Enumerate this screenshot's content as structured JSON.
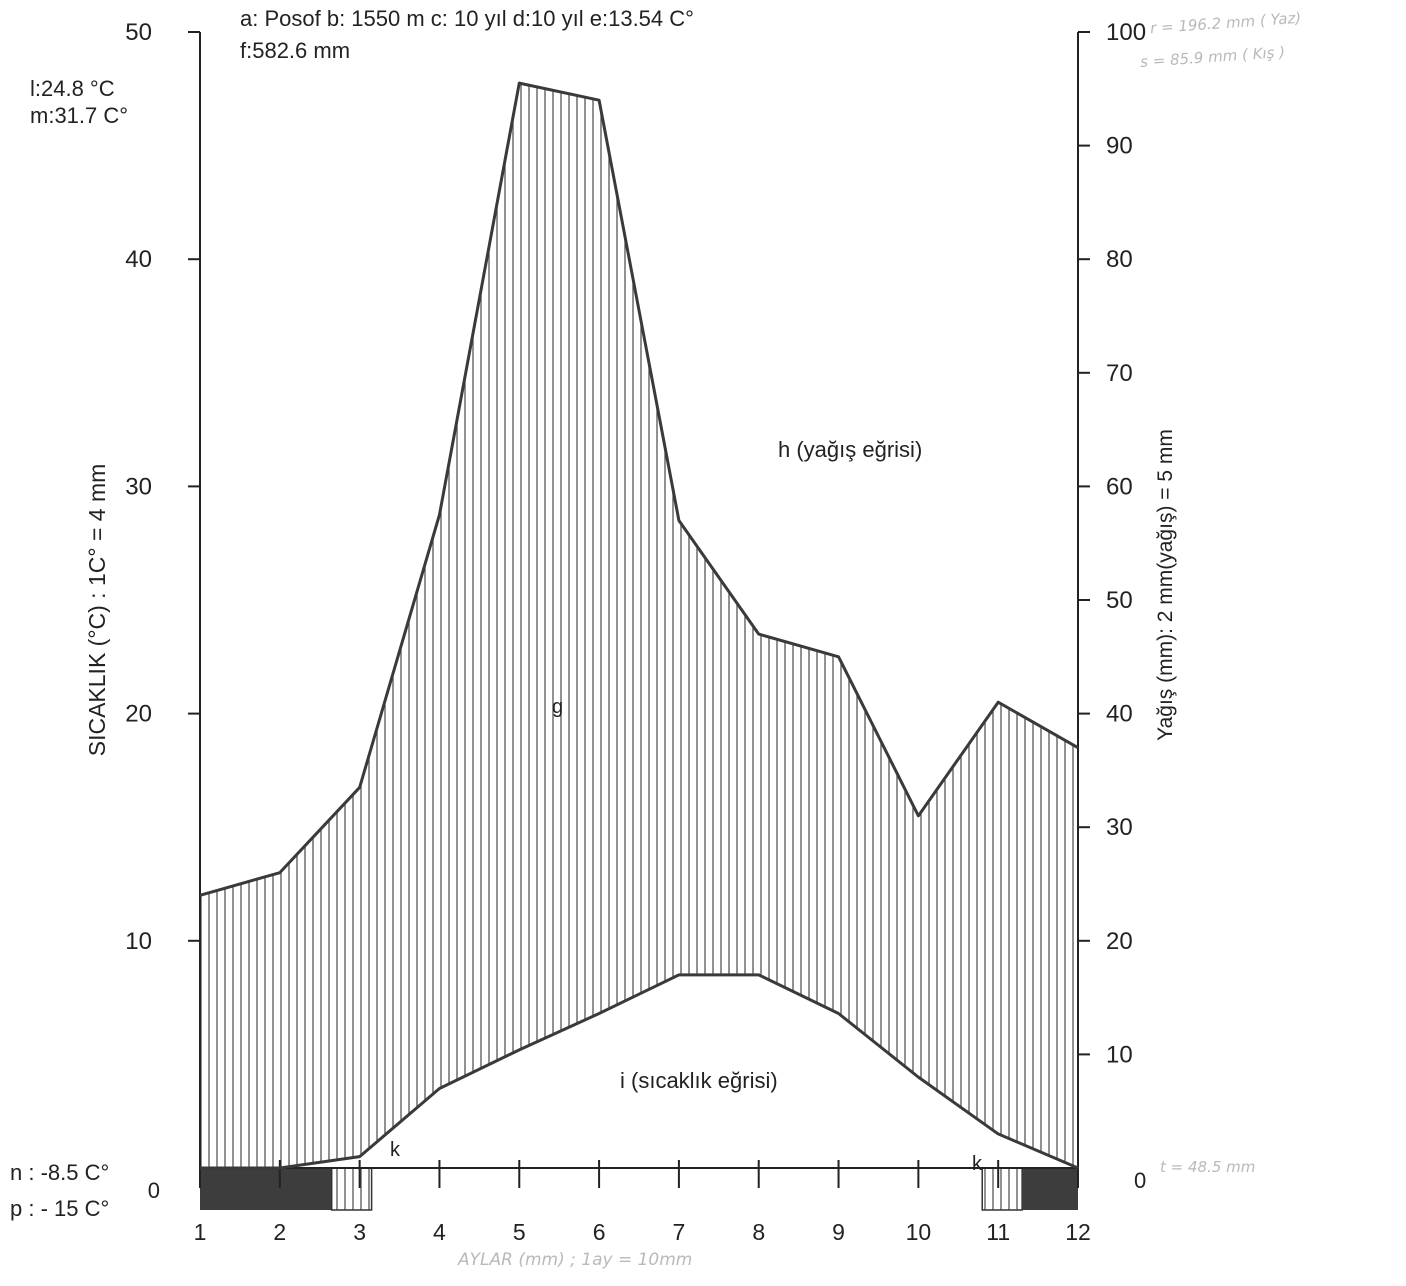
{
  "header": {
    "line1": "a: Posof b: 1550 m c: 10 yıl d:10 yıl e:13.54 C°",
    "line2": "f:582.6 mm"
  },
  "left_notes": {
    "l": "l:24.8 °C",
    "m": "m:31.7 C°"
  },
  "bottom_notes": {
    "n": "n : -8.5 C°",
    "p": "p : - 15 C°"
  },
  "handwritten": {
    "r": "r = 196.2 mm ( Yaz)",
    "s": "s = 85.9 mm ( Kış )",
    "t": "t = 48.5 mm",
    "xlabel": "AYLAR (mm) ; 1ay = 10mm"
  },
  "chart_data": {
    "type": "line",
    "x": [
      1,
      2,
      3,
      4,
      5,
      6,
      7,
      8,
      9,
      10,
      11,
      12
    ],
    "x_ticks": [
      "1",
      "2",
      "3",
      "4",
      "5",
      "6",
      "7",
      "8",
      "9",
      "10",
      "11",
      "12"
    ],
    "series": [
      {
        "name": "h (yağış eğrisi)",
        "axis": "right",
        "values": [
          24,
          26,
          33.5,
          57.5,
          95.5,
          94,
          57,
          47,
          45,
          31,
          41,
          37
        ]
      },
      {
        "name": "i (sıcaklık eğrisi)",
        "axis": "left",
        "values": [
          0,
          0,
          0.5,
          3.5,
          5.2,
          6.8,
          8.5,
          8.5,
          6.8,
          4,
          1.5,
          0
        ]
      }
    ],
    "ylabel_left": "SICAKLIK (°C) : 1C° = 4 mm",
    "ylabel_right": "Yağış (mm): 2 mm(yağış) = 5 mm",
    "ylim_left": [
      0,
      50
    ],
    "ylim_right": [
      0,
      100
    ],
    "left_ticks": [
      "10",
      "20",
      "30",
      "40",
      "50"
    ],
    "left_zero": "0",
    "right_ticks": [
      "10",
      "20",
      "30",
      "40",
      "50",
      "60",
      "70",
      "80",
      "90",
      "100"
    ],
    "right_zero": "0",
    "region_labels": {
      "g": "g",
      "k1": "k",
      "k2": "k"
    },
    "frost_bands": [
      {
        "type": "dark",
        "from": 1,
        "to": 2.65
      },
      {
        "type": "hatched",
        "from": 2.65,
        "to": 3.15
      },
      {
        "type": "hatched",
        "from": 10.8,
        "to": 11.3
      },
      {
        "type": "dark",
        "from": 11.3,
        "to": 12
      }
    ],
    "colors": {
      "line": "#3a3a3a",
      "hatch": "#555555",
      "dark_band": "#3d3d3d",
      "handwriting": "#b9b9b9"
    }
  }
}
